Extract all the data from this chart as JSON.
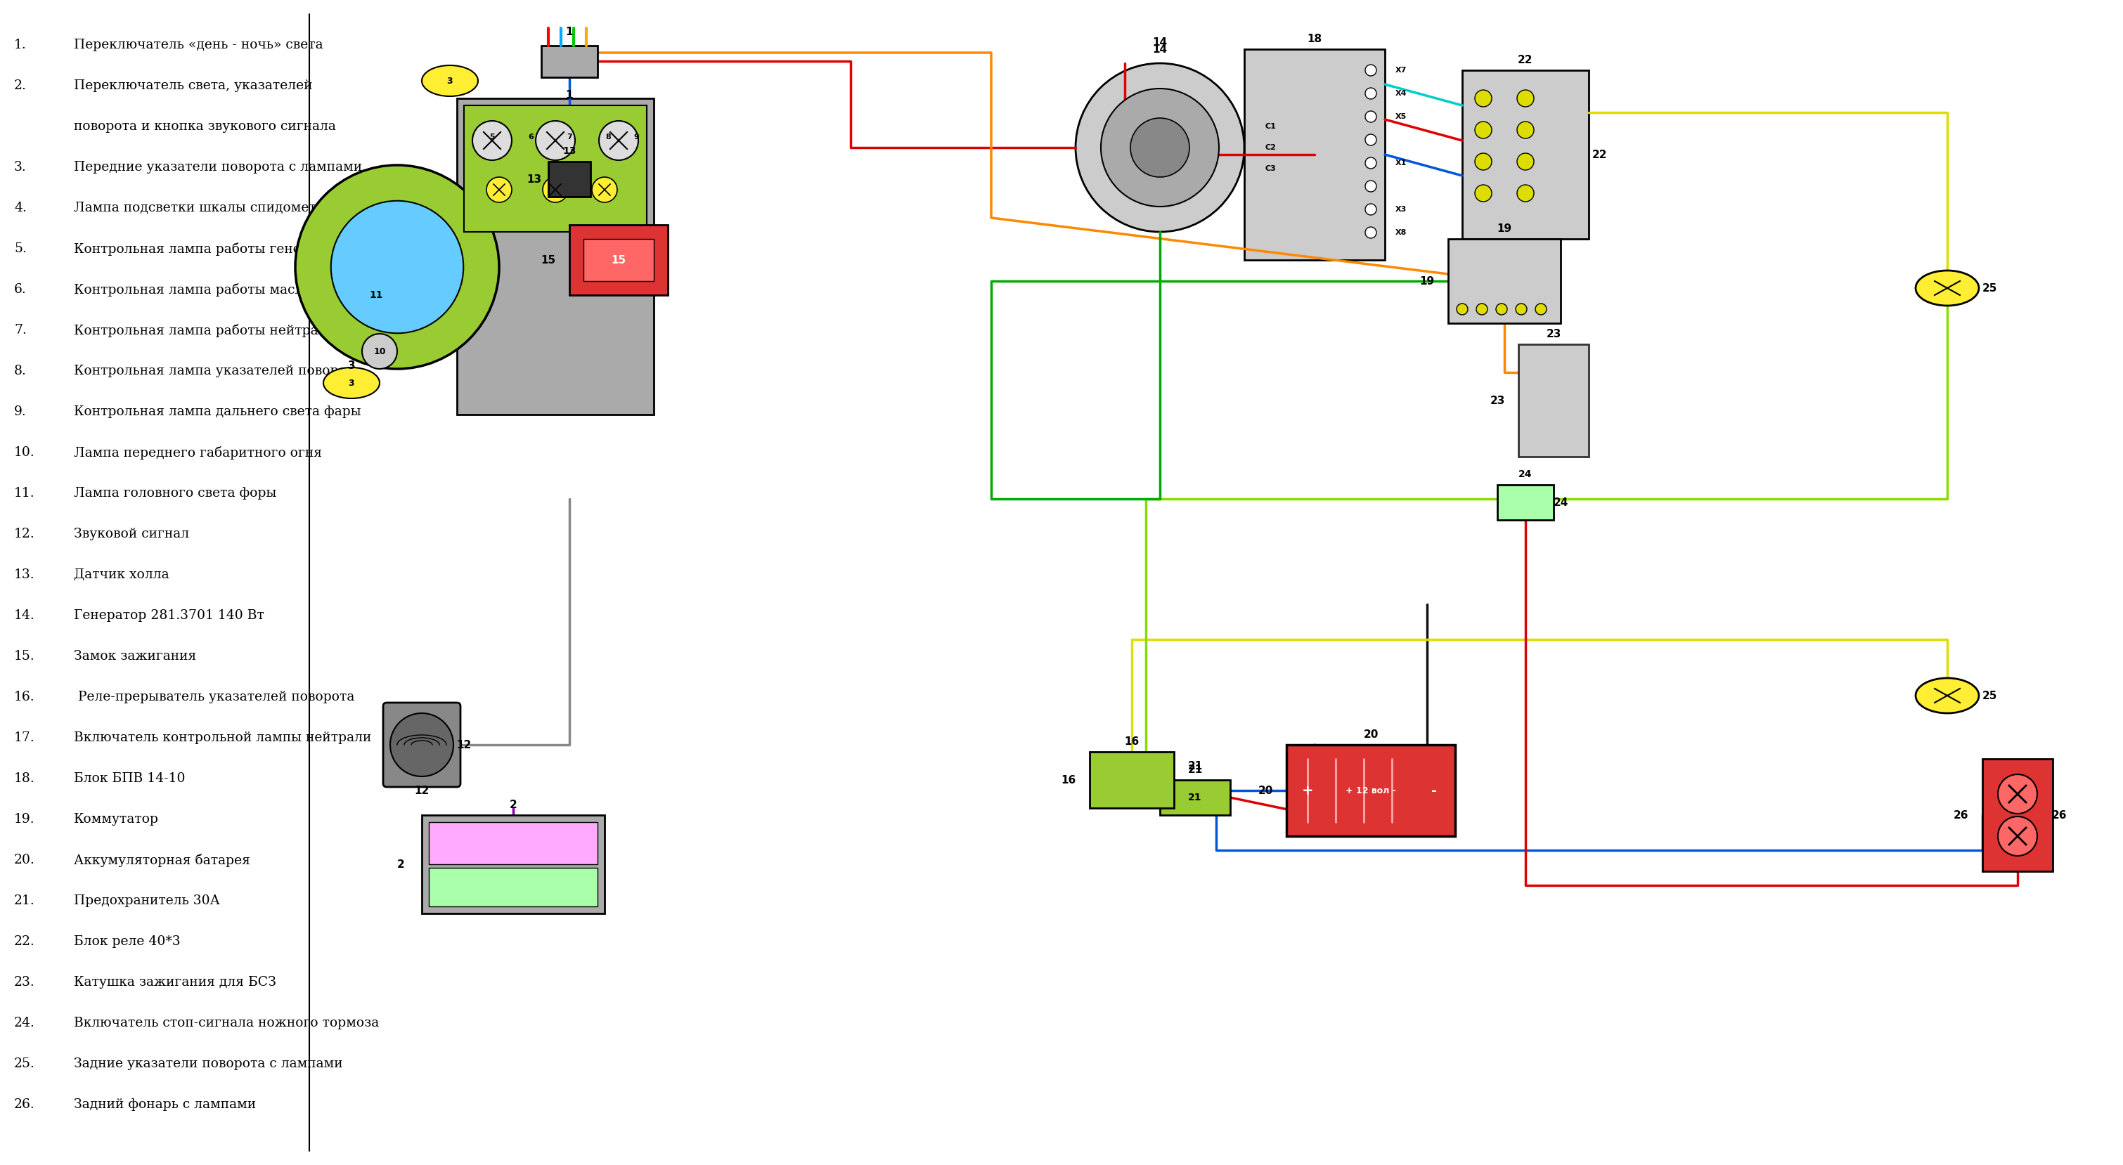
{
  "title": "",
  "bg_color": "#ffffff",
  "legend_items": [
    "1.    Переключатель «день - ночь» света",
    "2.    Переключатель света, указателей\n       поворота и кнопка звукового сигнала",
    "3.    Передние указатели поворота с лампами",
    "4.    Лампа подсветки шкалы спидометра",
    "5.    Контрольная лампа работы генератора",
    "6.    Контрольная лампа работы маслонасоса",
    "7.    Контрольная лампа работы нейтрали в КПП",
    "8.    Контрольная лампа указателей поворота",
    "9.    Контрольная лампа дальнего света фары",
    "10.  Лампа переднего габаритного огня",
    "11.  Лампа головного света форы",
    "12.  Звуковой сигнал",
    "13.  Датчик холла",
    "14.  Генератор 281.3701 140 Вт",
    "15  Замок зажигания",
    "16.   Реле-прерыватель указателей поворота",
    "17.  Включатель контрольной лампы нейтрали",
    "18.  Блок БПВ 14-10",
    "19.  Коммутатор",
    "20.  Аккумуляторная батарея",
    "21.  Предохранитель 30А",
    "22.  Блок реле 40*3",
    "23.  Катушка зажигания для БСЗ",
    "24.  Включатель стоп-сигнала ножного тормоза",
    "25.  Задние указатели поворота с лампами",
    "26.  Задний фонарь с лампами"
  ]
}
